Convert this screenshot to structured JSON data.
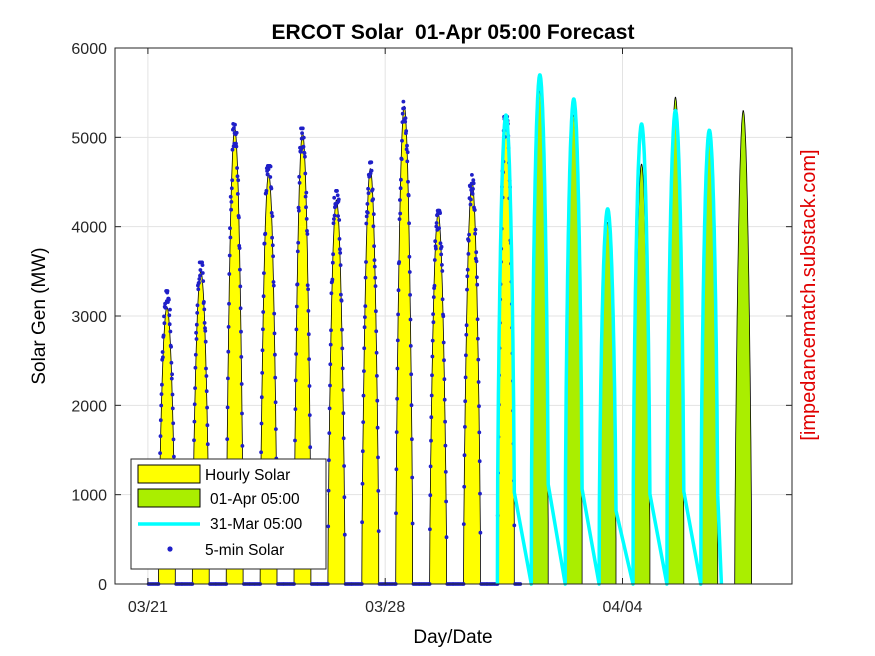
{
  "chart_data": {
    "type": "area",
    "title": "ERCOT Solar  01-Apr 05:00 Forecast",
    "xlabel": "Day/Date",
    "ylabel": "Solar Gen (MW)",
    "side_label": "[impedancematch.substack.com]",
    "xlim": [
      "03/20",
      "04/09"
    ],
    "ylim": [
      0,
      6000
    ],
    "yticks": [
      0,
      1000,
      2000,
      3000,
      4000,
      5000,
      6000
    ],
    "xticks": [
      {
        "label": "03/21",
        "day": 1
      },
      {
        "label": "03/28",
        "day": 8
      },
      {
        "label": "04/04",
        "day": 15
      }
    ],
    "grid": true,
    "legend_position": "bottom-left",
    "x_unit": "days from 03/20 00:00",
    "series": [
      {
        "name": "Hourly Solar",
        "color": "#ffff00",
        "style": "filled-area",
        "daily_peaks": [
          {
            "day": "03/21",
            "peak": 3100
          },
          {
            "day": "03/22",
            "peak": 3500
          },
          {
            "day": "03/23",
            "peak": 5100
          },
          {
            "day": "03/24",
            "peak": 4600
          },
          {
            "day": "03/25",
            "peak": 5050
          },
          {
            "day": "03/26",
            "peak": 4300
          },
          {
            "day": "03/27",
            "peak": 4650
          },
          {
            "day": "03/28",
            "peak": 5350
          },
          {
            "day": "03/29",
            "peak": 4150
          },
          {
            "day": "03/30",
            "peak": 4500
          },
          {
            "day": "03/31",
            "peak": 5200
          }
        ]
      },
      {
        "name": "01-Apr 05:00",
        "color": "#aaee00",
        "style": "filled-area",
        "daily_peaks": [
          {
            "day": "04/01",
            "peak": 5520
          },
          {
            "day": "04/02",
            "peak": 5250
          },
          {
            "day": "04/03",
            "peak": 4050
          },
          {
            "day": "04/04",
            "peak": 4700
          },
          {
            "day": "04/05",
            "peak": 5450
          },
          {
            "day": "04/06",
            "peak": 4950
          },
          {
            "day": "04/07",
            "peak": 5300
          }
        ]
      },
      {
        "name": "31-Mar 05:00",
        "color": "#00ffff",
        "style": "line",
        "daily_peaks": [
          {
            "day": "03/31",
            "peak": 5250
          },
          {
            "day": "04/01",
            "peak": 5700
          },
          {
            "day": "04/02",
            "peak": 5430
          },
          {
            "day": "04/03",
            "peak": 4200
          },
          {
            "day": "04/04",
            "peak": 5150
          },
          {
            "day": "04/05",
            "peak": 5300
          },
          {
            "day": "04/06",
            "peak": 5080
          }
        ]
      },
      {
        "name": "5-min Solar",
        "color": "#1f1fc8",
        "style": "dots",
        "daily_peaks": [
          {
            "day": "03/21",
            "peak": 3280
          },
          {
            "day": "03/22",
            "peak": 3600
          },
          {
            "day": "03/23",
            "peak": 5150
          },
          {
            "day": "03/24",
            "peak": 4680
          },
          {
            "day": "03/25",
            "peak": 5100
          },
          {
            "day": "03/26",
            "peak": 4400
          },
          {
            "day": "03/27",
            "peak": 4720
          },
          {
            "day": "03/28",
            "peak": 5400
          },
          {
            "day": "03/29",
            "peak": 4180
          },
          {
            "day": "03/30",
            "peak": 4580
          },
          {
            "day": "03/31",
            "peak": 5230
          }
        ]
      }
    ]
  }
}
